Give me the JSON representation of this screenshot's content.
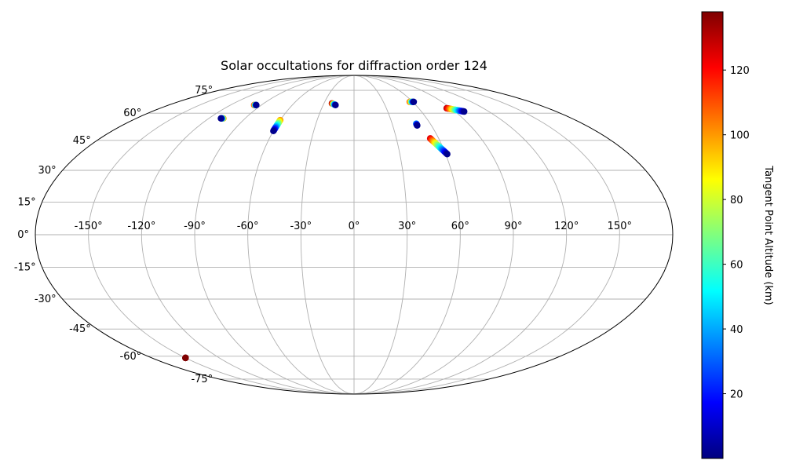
{
  "chart_data": {
    "type": "scatter",
    "projection": "mollweide",
    "title": "Solar occultations for diffraction order 124",
    "grid": true,
    "x_ticks": [
      "-150°",
      "-120°",
      "-90°",
      "-60°",
      "-30°",
      "0°",
      "30°",
      "60°",
      "90°",
      "120°",
      "150°"
    ],
    "y_ticks": [
      "-75°",
      "-60°",
      "-45°",
      "-30°",
      "-15°",
      "0°",
      "15°",
      "30°",
      "45°",
      "60°",
      "75°"
    ],
    "colorbar": {
      "label": "Tangent Point Altitude (km)",
      "colormap": "jet",
      "range": [
        0,
        138
      ],
      "ticks": [
        "20",
        "40",
        "60",
        "80",
        "100",
        "120"
      ],
      "colors": [
        "#00007f",
        "#0000ff",
        "#007fff",
        "#00ffff",
        "#7fff7f",
        "#ffff00",
        "#ff7f00",
        "#ff0000",
        "#7f0000"
      ]
    },
    "series": [
      {
        "lon_start": -97,
        "lat_start": 65,
        "lon_end": -95,
        "lat_end": 65,
        "alt_start": 120,
        "alt_end": 2
      },
      {
        "lon_start": -108,
        "lat_start": 57,
        "lon_end": -110,
        "lat_end": 57,
        "alt_start": 100,
        "alt_end": 2
      },
      {
        "lon_start": -60,
        "lat_start": 56,
        "lon_end": -60,
        "lat_end": 50,
        "alt_start": 100,
        "alt_end": 2
      },
      {
        "lon_start": -22,
        "lat_start": 66,
        "lon_end": -18,
        "lat_end": 65,
        "alt_start": 130,
        "alt_end": 2
      },
      {
        "lon_start": 57,
        "lat_start": 67,
        "lon_end": 61,
        "lat_end": 67,
        "alt_start": 110,
        "alt_end": 2
      },
      {
        "lon_start": 49,
        "lat_start": 54,
        "lon_end": 49,
        "lat_end": 53,
        "alt_start": 40,
        "alt_end": 2
      },
      {
        "lon_start": 86,
        "lat_start": 63,
        "lon_end": 98,
        "lat_end": 61,
        "alt_start": 130,
        "alt_end": 2
      },
      {
        "lon_start": 54,
        "lat_start": 46,
        "lon_end": 61,
        "lat_end": 38,
        "alt_start": 125,
        "alt_end": 2
      },
      {
        "lon_start": -150,
        "lat_start": -61,
        "lon_end": -150,
        "lat_end": -61,
        "alt_start": 138,
        "alt_end": 138
      }
    ]
  }
}
